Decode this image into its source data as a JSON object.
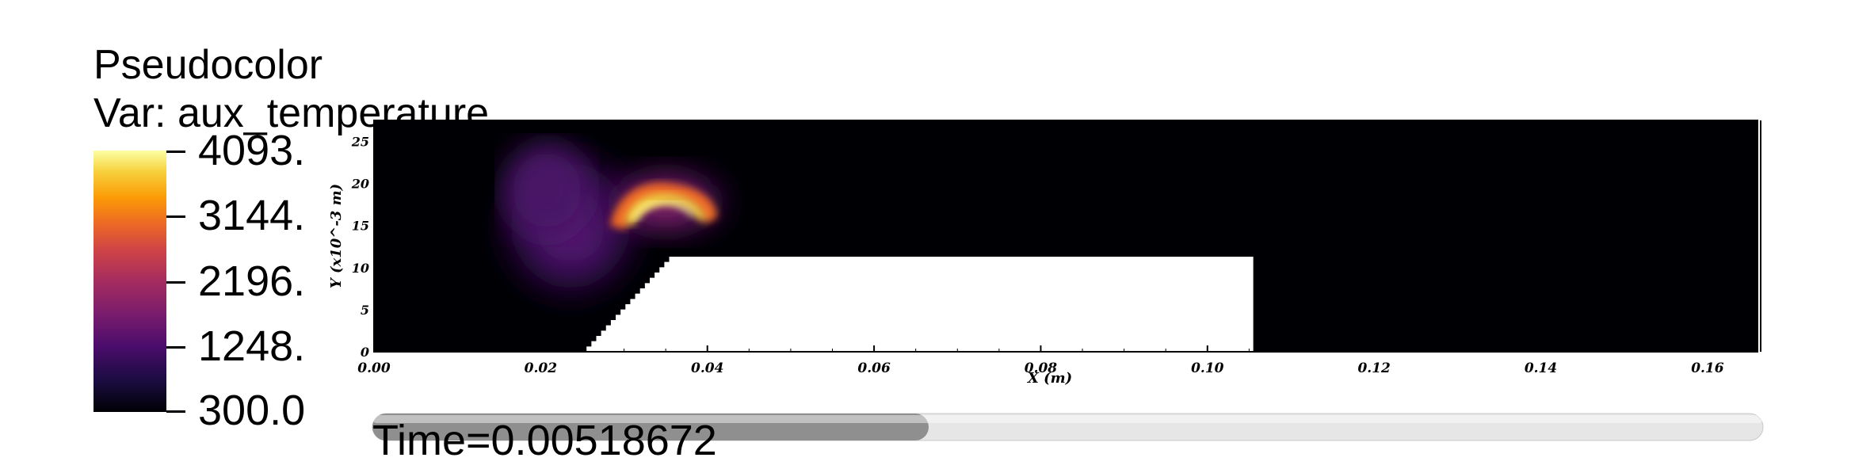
{
  "legend": {
    "title": "Pseudocolor",
    "variable": "Var: aux_temperature",
    "labels": [
      "4093.",
      "3144.",
      "2196.",
      "1248.",
      "300.0"
    ]
  },
  "time": {
    "label": "Time=0.00518672",
    "progress": 0.4
  },
  "chart_data": {
    "type": "heatmap",
    "title": "Pseudocolor",
    "variable": "aux_temperature",
    "colorscale_range": [
      300.0,
      4093.0
    ],
    "colorbar_ticks": [
      4093.0,
      3144.0,
      2196.0,
      1248.0,
      300.0
    ],
    "xlabel": "X (m)",
    "ylabel": "Y (x10^-3 m)",
    "xlim": [
      0.0,
      0.166
    ],
    "ylim": [
      0,
      27.5
    ],
    "x_ticks": [
      "0.00",
      "0.02",
      "0.04",
      "0.06",
      "0.08",
      "0.10",
      "0.12",
      "0.14",
      "0.16"
    ],
    "y_ticks": [
      "0",
      "5",
      "10",
      "15",
      "20",
      "25"
    ],
    "obstacle": {
      "x_start": 0.0255,
      "x_top_start": 0.036,
      "x_end": 0.1055,
      "y_top": 11.3
    },
    "features": [
      {
        "name": "cool-plume",
        "x": 0.023,
        "y": 14.5,
        "value": 1000
      },
      {
        "name": "hot-flame",
        "x": 0.034,
        "y": 16.5,
        "value": 3600
      }
    ]
  }
}
